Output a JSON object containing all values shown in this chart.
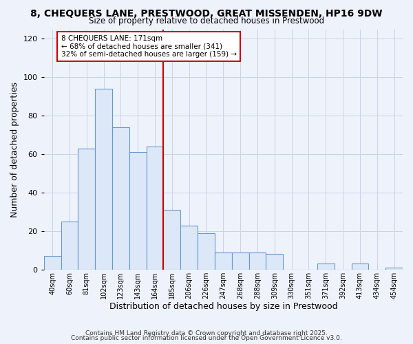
{
  "title": "8, CHEQUERS LANE, PRESTWOOD, GREAT MISSENDEN, HP16 9DW",
  "subtitle": "Size of property relative to detached houses in Prestwood",
  "xlabel": "Distribution of detached houses by size in Prestwood",
  "ylabel": "Number of detached properties",
  "bin_labels": [
    "40sqm",
    "60sqm",
    "81sqm",
    "102sqm",
    "123sqm",
    "143sqm",
    "164sqm",
    "185sqm",
    "206sqm",
    "226sqm",
    "247sqm",
    "268sqm",
    "288sqm",
    "309sqm",
    "330sqm",
    "351sqm",
    "371sqm",
    "392sqm",
    "413sqm",
    "434sqm",
    "454sqm"
  ],
  "bar_heights": [
    7,
    25,
    63,
    94,
    74,
    61,
    64,
    31,
    23,
    19,
    9,
    9,
    9,
    8,
    0,
    0,
    3,
    0,
    3,
    0,
    1
  ],
  "bar_color": "#dce8f8",
  "bar_edge_color": "#6699cc",
  "vline_x_idx": 6.5,
  "vline_color": "#cc0000",
  "annotation_title": "8 CHEQUERS LANE: 171sqm",
  "annotation_line1": "← 68% of detached houses are smaller (341)",
  "annotation_line2": "32% of semi-detached houses are larger (159) →",
  "annotation_box_color": "#ffffff",
  "annotation_box_edge": "#cc0000",
  "footer1": "Contains HM Land Registry data © Crown copyright and database right 2025.",
  "footer2": "Contains public sector information licensed under the Open Government Licence v3.0.",
  "background_color": "#eef2fa",
  "plot_bg_color": "#eef2fa",
  "ylim": [
    0,
    125
  ],
  "yticks": [
    0,
    20,
    40,
    60,
    80,
    100,
    120
  ]
}
